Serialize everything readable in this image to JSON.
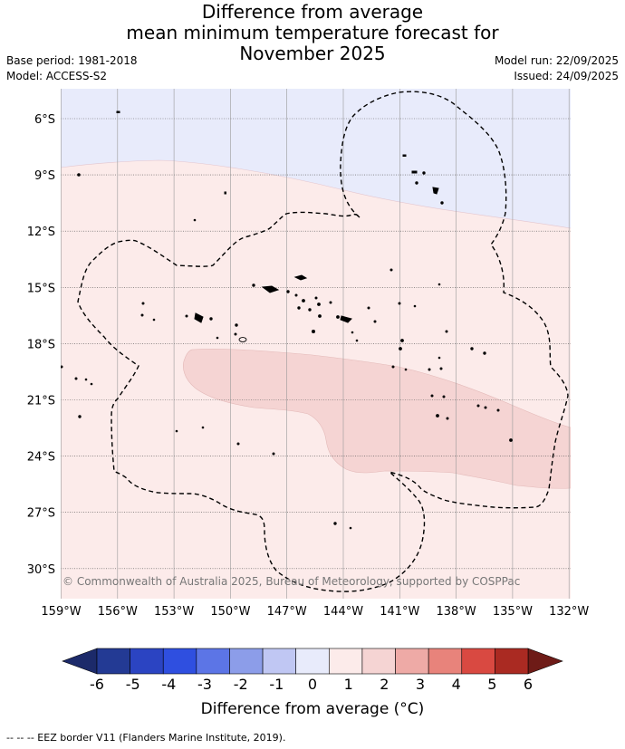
{
  "title": {
    "line1": "Difference from average",
    "line2": "mean minimum temperature forecast for",
    "line3": "November 2025"
  },
  "meta": {
    "base_period": "Base period: 1981-2018",
    "model": "Model: ACCESS-S2",
    "model_run": "Model run: 22/09/2025",
    "issued": "Issued: 24/09/2025"
  },
  "map": {
    "lat_ticks": [
      "6°S",
      "9°S",
      "12°S",
      "15°S",
      "18°S",
      "21°S",
      "24°S",
      "27°S",
      "30°S"
    ],
    "lon_ticks": [
      "159°W",
      "156°W",
      "153°W",
      "150°W",
      "147°W",
      "144°W",
      "141°W",
      "138°W",
      "135°W",
      "132°W"
    ],
    "copyright": "© Commonwealth of Australia 2025, Bureau of Meteorology, supported by COSPPac",
    "colors": {
      "band_minus1_0": "#e8ebfb",
      "band_0_1": "#fcebea",
      "band_1_2": "#f5d4d3"
    }
  },
  "colorbar": {
    "ticks": [
      "-6",
      "-5",
      "-4",
      "-3",
      "-2",
      "-1",
      "0",
      "1",
      "2",
      "3",
      "4",
      "5",
      "6"
    ],
    "colors": [
      "#233a94",
      "#2b44c2",
      "#2f4fe0",
      "#5c75e6",
      "#8c9de9",
      "#c0c7f3",
      "#e8ebfb",
      "#fcebea",
      "#f5d4d3",
      "#eeaaa6",
      "#e8837b",
      "#d94941",
      "#aa2a22"
    ],
    "low_arrow": "#1c2a6a",
    "high_arrow": "#6e1b17",
    "label": "Difference from average (°C)"
  },
  "footer": {
    "legend": "-- -- -- EEZ border V11 (Flanders Marine Institute, 2019)."
  }
}
